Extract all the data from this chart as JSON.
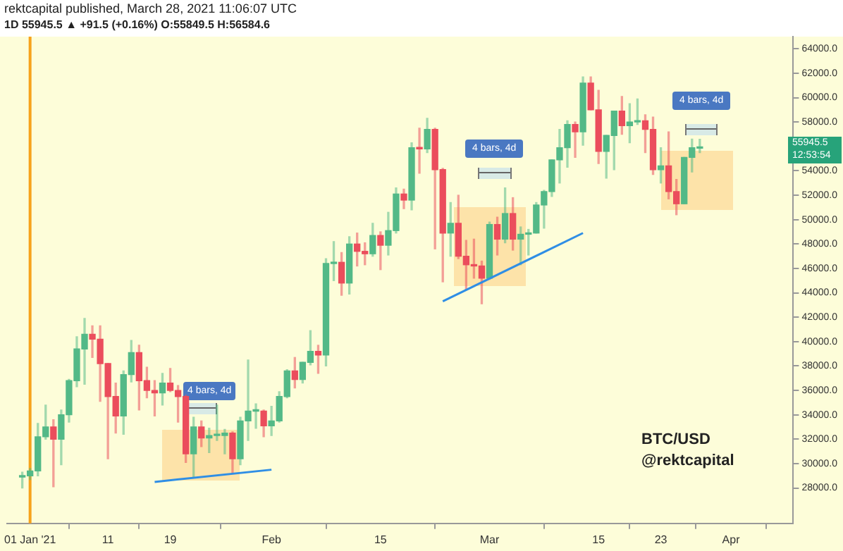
{
  "chart_data": {
    "type": "candlestick",
    "title": "rektcapital published, March 28, 2021 11:06:07 UTC",
    "subtitle": "1D  55945.5 ▲ +91.5 (+0.16%)  O:55849.5  H:56584.6",
    "x": [
      "2020-12-31",
      "2021-01-01",
      "2021-01-02",
      "2021-01-03",
      "2021-01-04",
      "2021-01-05",
      "2021-01-06",
      "2021-01-07",
      "2021-01-08",
      "2021-01-09",
      "2021-01-10",
      "2021-01-11",
      "2021-01-12",
      "2021-01-13",
      "2021-01-14",
      "2021-01-15",
      "2021-01-16",
      "2021-01-17",
      "2021-01-18",
      "2021-01-19",
      "2021-01-20",
      "2021-01-21",
      "2021-01-22",
      "2021-01-23",
      "2021-01-24",
      "2021-01-25",
      "2021-01-26",
      "2021-01-27",
      "2021-01-28",
      "2021-01-29",
      "2021-01-30",
      "2021-01-31",
      "2021-02-01",
      "2021-02-02",
      "2021-02-03",
      "2021-02-04",
      "2021-02-05",
      "2021-02-06",
      "2021-02-07",
      "2021-02-08",
      "2021-02-09",
      "2021-02-10",
      "2021-02-11",
      "2021-02-12",
      "2021-02-13",
      "2021-02-14",
      "2021-02-15",
      "2021-02-16",
      "2021-02-17",
      "2021-02-18",
      "2021-02-19",
      "2021-02-20",
      "2021-02-21",
      "2021-02-22",
      "2021-02-23",
      "2021-02-24",
      "2021-02-25",
      "2021-02-26",
      "2021-02-27",
      "2021-02-28",
      "2021-03-01",
      "2021-03-02",
      "2021-03-03",
      "2021-03-04",
      "2021-03-05",
      "2021-03-06",
      "2021-03-07",
      "2021-03-08",
      "2021-03-09",
      "2021-03-10",
      "2021-03-11",
      "2021-03-12",
      "2021-03-13",
      "2021-03-14",
      "2021-03-15",
      "2021-03-16",
      "2021-03-17",
      "2021-03-18",
      "2021-03-19",
      "2021-03-20",
      "2021-03-21",
      "2021-03-22",
      "2021-03-23",
      "2021-03-24",
      "2021-03-25",
      "2021-03-26",
      "2021-03-27",
      "2021-03-28"
    ],
    "ohlc": [
      [
        28900,
        29300,
        28000,
        29000
      ],
      [
        29000,
        29600,
        28700,
        29400
      ],
      [
        29400,
        33300,
        29000,
        32200
      ],
      [
        32200,
        34800,
        32000,
        33000
      ],
      [
        33000,
        33600,
        28100,
        32000
      ],
      [
        32000,
        34400,
        29900,
        34000
      ],
      [
        34000,
        36900,
        33400,
        36800
      ],
      [
        36800,
        40400,
        36300,
        39400
      ],
      [
        39400,
        41900,
        36500,
        40600
      ],
      [
        40600,
        41300,
        38700,
        40200
      ],
      [
        40200,
        41300,
        35100,
        38200
      ],
      [
        38200,
        38200,
        30400,
        35500
      ],
      [
        35500,
        36600,
        32500,
        33900
      ],
      [
        33900,
        37600,
        32400,
        37300
      ],
      [
        37300,
        40100,
        36700,
        39100
      ],
      [
        39100,
        39700,
        34400,
        36800
      ],
      [
        36800,
        37900,
        35400,
        36000
      ],
      [
        36000,
        36800,
        33900,
        35800
      ],
      [
        35800,
        37400,
        34800,
        36600
      ],
      [
        36600,
        37800,
        35900,
        36000
      ],
      [
        36000,
        36400,
        33400,
        35500
      ],
      [
        35500,
        35600,
        30100,
        30800
      ],
      [
        30800,
        33800,
        28900,
        33000
      ],
      [
        33000,
        33500,
        31400,
        32100
      ],
      [
        32100,
        32900,
        30900,
        32300
      ],
      [
        32300,
        34800,
        31900,
        32300
      ],
      [
        32300,
        32800,
        30800,
        32500
      ],
      [
        32500,
        32600,
        29200,
        30400
      ],
      [
        30400,
        33800,
        29900,
        33500
      ],
      [
        33500,
        38500,
        31900,
        34300
      ],
      [
        34300,
        34900,
        32900,
        34300
      ],
      [
        34300,
        34400,
        32200,
        33100
      ],
      [
        33100,
        34700,
        32300,
        33500
      ],
      [
        33500,
        35900,
        33400,
        35500
      ],
      [
        35500,
        37700,
        35400,
        37600
      ],
      [
        37600,
        38700,
        36200,
        36900
      ],
      [
        36900,
        38300,
        36600,
        38300
      ],
      [
        38300,
        40900,
        38100,
        39200
      ],
      [
        39200,
        39700,
        37400,
        38900
      ],
      [
        38900,
        46800,
        38000,
        46400
      ],
      [
        46400,
        48200,
        45000,
        46500
      ],
      [
        46500,
        47300,
        43800,
        44800
      ],
      [
        44800,
        48600,
        43900,
        48000
      ],
      [
        48000,
        48900,
        46200,
        47400
      ],
      [
        47400,
        48100,
        46300,
        47200
      ],
      [
        47200,
        49700,
        47000,
        48700
      ],
      [
        48700,
        49000,
        45900,
        47900
      ],
      [
        47900,
        50600,
        47100,
        49100
      ],
      [
        49100,
        52600,
        48900,
        52100
      ],
      [
        52100,
        52500,
        50900,
        51600
      ],
      [
        51600,
        56300,
        50800,
        55900
      ],
      [
        55900,
        57500,
        53800,
        55800
      ],
      [
        55800,
        58300,
        55500,
        57400
      ],
      [
        57400,
        57500,
        47600,
        54100
      ],
      [
        54100,
        54200,
        44900,
        48900
      ],
      [
        48900,
        51400,
        47000,
        49700
      ],
      [
        49700,
        52000,
        46800,
        47000
      ],
      [
        47000,
        48300,
        44300,
        46300
      ],
      [
        46300,
        48400,
        45200,
        46200
      ],
      [
        46200,
        46600,
        43100,
        45200
      ],
      [
        45200,
        49800,
        45100,
        49600
      ],
      [
        49600,
        50200,
        47100,
        48400
      ],
      [
        48400,
        52600,
        48100,
        50500
      ],
      [
        50500,
        51800,
        47500,
        48400
      ],
      [
        48400,
        49400,
        46300,
        48800
      ],
      [
        48800,
        49200,
        47100,
        48900
      ],
      [
        48900,
        51400,
        48900,
        51200
      ],
      [
        51200,
        52400,
        49300,
        52300
      ],
      [
        52300,
        54900,
        51900,
        54900
      ],
      [
        54900,
        57400,
        53000,
        55900
      ],
      [
        55900,
        58100,
        54300,
        57800
      ],
      [
        57800,
        58000,
        55100,
        57200
      ],
      [
        57200,
        61700,
        56100,
        61200
      ],
      [
        61200,
        61700,
        59000,
        59000
      ],
      [
        59000,
        60600,
        54600,
        55600
      ],
      [
        55600,
        56900,
        53400,
        56900
      ],
      [
        56900,
        58900,
        54100,
        58900
      ],
      [
        58900,
        60100,
        57000,
        57700
      ],
      [
        57700,
        59500,
        56300,
        58000
      ],
      [
        58000,
        59900,
        57800,
        58100
      ],
      [
        58100,
        58600,
        55500,
        57400
      ],
      [
        57400,
        58400,
        53700,
        54100
      ],
      [
        54100,
        55900,
        53000,
        54400
      ],
      [
        54400,
        57200,
        51700,
        52300
      ],
      [
        52300,
        53300,
        50400,
        51300
      ],
      [
        51300,
        55100,
        51300,
        55100
      ],
      [
        55100,
        56600,
        53900,
        55900
      ],
      [
        55849.5,
        56584.6,
        55500,
        55945.5
      ]
    ],
    "colors": [
      "#53b987",
      "#53b987",
      "#53b987",
      "#53b987",
      "#eb4d5c",
      "#53b987",
      "#53b987",
      "#53b987",
      "#53b987",
      "#eb4d5c",
      "#eb4d5c",
      "#eb4d5c",
      "#eb4d5c",
      "#53b987",
      "#53b987",
      "#eb4d5c",
      "#eb4d5c",
      "#eb4d5c",
      "#53b987",
      "#eb4d5c",
      "#eb4d5c",
      "#eb4d5c",
      "#53b987",
      "#eb4d5c",
      "#53b987",
      "#53b987",
      "#53b987",
      "#eb4d5c",
      "#53b987",
      "#53b987",
      "#53b987",
      "#eb4d5c",
      "#53b987",
      "#53b987",
      "#53b987",
      "#eb4d5c",
      "#53b987",
      "#53b987",
      "#eb4d5c",
      "#53b987",
      "#53b987",
      "#eb4d5c",
      "#53b987",
      "#eb4d5c",
      "#eb4d5c",
      "#53b987",
      "#eb4d5c",
      "#53b987",
      "#53b987",
      "#eb4d5c",
      "#53b987",
      "#eb4d5c",
      "#53b987",
      "#eb4d5c",
      "#eb4d5c",
      "#53b987",
      "#eb4d5c",
      "#eb4d5c",
      "#eb4d5c",
      "#eb4d5c",
      "#53b987",
      "#eb4d5c",
      "#53b987",
      "#eb4d5c",
      "#53b987",
      "#53b987",
      "#53b987",
      "#53b987",
      "#53b987",
      "#53b987",
      "#53b987",
      "#eb4d5c",
      "#53b987",
      "#eb4d5c",
      "#eb4d5c",
      "#53b987",
      "#53b987",
      "#eb4d5c",
      "#53b987",
      "#53b987",
      "#eb4d5c",
      "#eb4d5c",
      "#53b987",
      "#eb4d5c",
      "#eb4d5c",
      "#53b987",
      "#53b987",
      "#53b987"
    ],
    "series": [
      {
        "type": "line",
        "x": [
          "2021-01-17",
          "2021-02-01"
        ],
        "values": [
          28500,
          29500
        ],
        "color": "#2f8ee5"
      },
      {
        "type": "line",
        "x": [
          "2021-02-23",
          "2021-03-13"
        ],
        "values": [
          43300,
          48900
        ],
        "color": "#2f8ee5"
      }
    ],
    "ref_lines": [
      {
        "axis": "x",
        "value": "2021-01-01",
        "color": "#f7a21b"
      }
    ],
    "xlim": [
      "2020-12-29",
      "2021-04-09"
    ],
    "xticks": [
      {
        "value": "2021-01-01",
        "label": "01 Jan '21"
      },
      {
        "value": "2021-01-11",
        "label": "11"
      },
      {
        "value": "2021-01-19",
        "label": "19"
      },
      {
        "value": "2021-02-01",
        "label": "Feb"
      },
      {
        "value": "2021-02-15",
        "label": "15"
      },
      {
        "value": "2021-03-01",
        "label": "Mar"
      },
      {
        "value": "2021-03-15",
        "label": "15"
      },
      {
        "value": "2021-03-23",
        "label": "23"
      },
      {
        "value": "2021-04-01",
        "label": "Apr"
      }
    ],
    "ylim": [
      25100,
      65000
    ],
    "yticks": [
      {
        "value": 28000,
        "label": "28000.0"
      },
      {
        "value": 30000,
        "label": "30000.0"
      },
      {
        "value": 32000,
        "label": "32000.0"
      },
      {
        "value": 34000,
        "label": "34000.0"
      },
      {
        "value": 36000,
        "label": "36000.0"
      },
      {
        "value": 38000,
        "label": "38000.0"
      },
      {
        "value": 40000,
        "label": "40000.0"
      },
      {
        "value": 42000,
        "label": "42000.0"
      },
      {
        "value": 44000,
        "label": "44000.0"
      },
      {
        "value": 46000,
        "label": "46000.0"
      },
      {
        "value": 48000,
        "label": "48000.0"
      },
      {
        "value": 50000,
        "label": "50000.0"
      },
      {
        "value": 52000,
        "label": "52000.0"
      },
      {
        "value": 54000,
        "label": "54000.0"
      },
      {
        "value": 56000,
        "label": null
      },
      {
        "value": 58000,
        "label": "58000.0"
      },
      {
        "value": 60000,
        "label": "60000.0"
      },
      {
        "value": 62000,
        "label": "62000.0"
      },
      {
        "value": 64000,
        "label": "64000.0"
      }
    ],
    "grid": false,
    "legend": false,
    "annotations": [
      "4 bars, 4d",
      "4 bars, 4d",
      "4 bars, 4d",
      "55945.5",
      "12:53:54",
      "BTC/USD",
      "@rektcapital"
    ]
  }
}
